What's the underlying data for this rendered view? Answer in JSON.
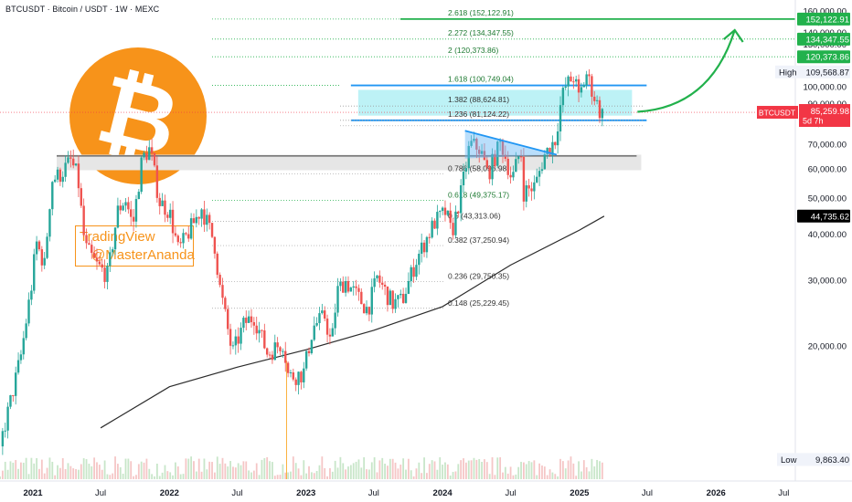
{
  "header": {
    "symbol_title": "BTCUSDT · Bitcoin / USDT · 1W · MEXC"
  },
  "watermark": {
    "line1": "TradingView",
    "line2": "@MasterAnanda",
    "logo_symbol": "₿",
    "logo_color": "#f7931a",
    "frame_color": "#f7931a"
  },
  "colors": {
    "up": "#26a69a",
    "down": "#ef5350",
    "fib_green": "#22b14c",
    "fib_grey": "#9e9e9e",
    "zone_blue": "#2196f3",
    "zone_fill": "#b2f0f5",
    "ma_line": "#2b2b2b",
    "resistance_band": "#e6e6e6"
  },
  "chart_data": {
    "type": "candlestick",
    "title": "BTCUSDT · Bitcoin / USDT · 1W · MEXC",
    "y_scale": "log",
    "ylim": [
      9000,
      170000
    ],
    "xlim": [
      "2020-10-05",
      "2026-08-01"
    ],
    "x_ticks": [
      {
        "date": "2021-01-01",
        "label": "2021"
      },
      {
        "date": "2021-07-01",
        "label": "Jul"
      },
      {
        "date": "2022-01-01",
        "label": "2022"
      },
      {
        "date": "2022-07-01",
        "label": "Jul"
      },
      {
        "date": "2023-01-01",
        "label": "2023"
      },
      {
        "date": "2023-07-01",
        "label": "Jul"
      },
      {
        "date": "2024-01-01",
        "label": "2024"
      },
      {
        "date": "2024-07-01",
        "label": "Jul"
      },
      {
        "date": "2025-01-01",
        "label": "2025"
      },
      {
        "date": "2025-07-01",
        "label": "Jul"
      },
      {
        "date": "2026-01-01",
        "label": "2026"
      },
      {
        "date": "2026-07-01",
        "label": "Jul"
      }
    ],
    "y_ticks": [
      {
        "value": 10000,
        "label": "10,000.00"
      },
      {
        "value": 20000,
        "label": "20,000.00"
      },
      {
        "value": 30000,
        "label": "30,000.00"
      },
      {
        "value": 40000,
        "label": "40,000.00"
      },
      {
        "value": 50000,
        "label": "50,000.00"
      },
      {
        "value": 60000,
        "label": "60,000.00"
      },
      {
        "value": 70000,
        "label": "70,000.00"
      },
      {
        "value": 80000,
        "label": "80,000.00"
      },
      {
        "value": 90000,
        "label": "90,000.00"
      },
      {
        "value": 100000,
        "label": "100,000.00"
      },
      {
        "value": 110000,
        "label": "110,000.00"
      },
      {
        "value": 120000,
        "label": "120,000.00"
      },
      {
        "value": 130000,
        "label": "130,000.00"
      },
      {
        "value": 140000,
        "label": "140,000.00"
      },
      {
        "value": 150000,
        "label": "150,000.00"
      },
      {
        "value": 160000,
        "label": "160,000.00"
      }
    ],
    "price_series": [
      [
        "2020-10-05",
        10700
      ],
      [
        "2020-11-01",
        14000
      ],
      [
        "2020-12-01",
        19000
      ],
      [
        "2020-12-28",
        29000
      ],
      [
        "2021-01-10",
        38000
      ],
      [
        "2021-02-01",
        33000
      ],
      [
        "2021-02-20",
        56000
      ],
      [
        "2021-03-15",
        58000
      ],
      [
        "2021-04-12",
        63000
      ],
      [
        "2021-05-01",
        57000
      ],
      [
        "2021-05-20",
        37000
      ],
      [
        "2021-06-20",
        33000
      ],
      [
        "2021-07-20",
        31000
      ],
      [
        "2021-08-15",
        46000
      ],
      [
        "2021-09-05",
        50000
      ],
      [
        "2021-09-25",
        42000
      ],
      [
        "2021-10-20",
        64000
      ],
      [
        "2021-11-10",
        68000
      ],
      [
        "2021-12-05",
        49000
      ],
      [
        "2022-01-01",
        46000
      ],
      [
        "2022-01-25",
        36000
      ],
      [
        "2022-03-28",
        47000
      ],
      [
        "2022-05-01",
        38000
      ],
      [
        "2022-05-15",
        29000
      ],
      [
        "2022-06-18",
        19000
      ],
      [
        "2022-07-20",
        23000
      ],
      [
        "2022-08-15",
        24000
      ],
      [
        "2022-09-20",
        19000
      ],
      [
        "2022-11-01",
        20500
      ],
      [
        "2022-11-15",
        16500
      ],
      [
        "2022-12-25",
        16800
      ],
      [
        "2023-01-20",
        22500
      ],
      [
        "2023-02-20",
        24000
      ],
      [
        "2023-03-10",
        20000
      ],
      [
        "2023-03-25",
        28000
      ],
      [
        "2023-04-15",
        30000
      ],
      [
        "2023-06-15",
        25000
      ],
      [
        "2023-07-10",
        30500
      ],
      [
        "2023-08-20",
        26000
      ],
      [
        "2023-09-15",
        26500
      ],
      [
        "2023-10-25",
        34500
      ],
      [
        "2023-12-10",
        43000
      ],
      [
        "2024-01-10",
        46000
      ],
      [
        "2024-01-25",
        40000
      ],
      [
        "2024-02-20",
        52000
      ],
      [
        "2024-03-14",
        70000
      ],
      [
        "2024-04-10",
        68000
      ],
      [
        "2024-05-01",
        58000
      ],
      [
        "2024-06-05",
        71000
      ],
      [
        "2024-07-05",
        56000
      ],
      [
        "2024-07-28",
        68000
      ],
      [
        "2024-08-05",
        52000
      ],
      [
        "2024-09-05",
        54000
      ],
      [
        "2024-09-28",
        65000
      ],
      [
        "2024-10-28",
        72000
      ],
      [
        "2024-11-12",
        90000
      ],
      [
        "2024-11-22",
        99000
      ],
      [
        "2024-12-17",
        107000
      ],
      [
        "2024-12-30",
        93000
      ],
      [
        "2025-01-20",
        108000
      ],
      [
        "2025-02-05",
        97000
      ],
      [
        "2025-02-28",
        84000
      ],
      [
        "2025-03-08",
        85259.98
      ]
    ],
    "moving_average_line": [
      [
        "2021-07-01",
        12000
      ],
      [
        "2022-01-01",
        15500
      ],
      [
        "2022-07-01",
        17500
      ],
      [
        "2023-01-01",
        19500
      ],
      [
        "2023-07-01",
        22000
      ],
      [
        "2024-01-01",
        25500
      ],
      [
        "2024-07-01",
        33000
      ],
      [
        "2025-01-01",
        41000
      ],
      [
        "2025-03-08",
        44735.62
      ]
    ],
    "volume_spike_date": "2022-11-10",
    "fib_levels_upper": [
      {
        "value": 152122.91,
        "label": "2.618 (152,122.91)"
      },
      {
        "value": 134347.55,
        "label": "2.272 (134,347.55)"
      },
      {
        "value": 120373.86,
        "label": "2 (120,373.86)"
      },
      {
        "value": 100749.04,
        "label": "1.618 (100,749.04)"
      },
      {
        "value": 88624.81,
        "label": "1.382 (88,624.81)"
      },
      {
        "value": 81124.22,
        "label": "1.236 (81,124.22)"
      }
    ],
    "fib_levels_lower": [
      {
        "value": 58096.98,
        "label": "0.786 (58,096.98)"
      },
      {
        "value": 49375.17,
        "label": "0.618 (49,375.17)"
      },
      {
        "value": 43313.06,
        "label": "0.5 (43,313.06)"
      },
      {
        "value": 37250.94,
        "label": "0.382 (37,250.94)"
      },
      {
        "value": 29750.35,
        "label": "0.236 (29,750.35)"
      },
      {
        "value": 25229.45,
        "label": "0.148 (25,229.45)"
      }
    ],
    "resistance_band": {
      "from_date": "2020-12-01",
      "to_date": "2025-06-15",
      "low": 59500,
      "high": 65500,
      "line": 65000
    },
    "target_zone": {
      "from_date": "2023-05-01",
      "to_date": "2025-06-10",
      "low": 81124.22,
      "high": 100749.04
    },
    "triangle": {
      "start": [
        "2024-03-01",
        76000
      ],
      "end": [
        "2024-11-01",
        65500
      ],
      "base_start": [
        "2024-03-01",
        64000
      ]
    },
    "projection_arrow": {
      "from": [
        "2025-06-05",
        85500
      ],
      "to": [
        "2026-02-20",
        142000
      ]
    },
    "axis_badges": [
      {
        "value": 152122.91,
        "text": "152,122.91",
        "color": "#22b14c"
      },
      {
        "value": 134347.55,
        "text": "134,347.55",
        "color": "#22b14c"
      },
      {
        "value": 120373.86,
        "text": "120,373.86",
        "color": "#22b14c"
      },
      {
        "value": 44735.62,
        "text": "44,735.62",
        "color": "#000000"
      }
    ],
    "last_price": {
      "value": 85259.98,
      "symbol": "BTCUSDT",
      "text": "85,259.98",
      "countdown": "5d 7h",
      "color": "#f23645"
    },
    "high": {
      "label": "High",
      "value": 109568.87,
      "text": "109,568.87"
    },
    "low": {
      "label": "Low",
      "value": 9863.4,
      "text": "9,863.40"
    }
  }
}
